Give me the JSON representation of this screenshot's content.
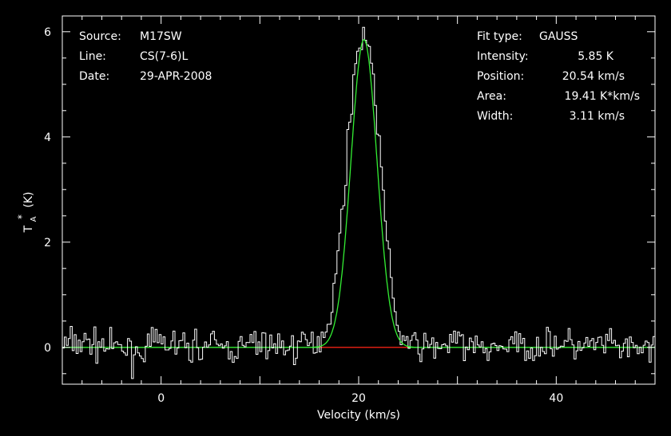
{
  "header_left": {
    "source_label": "Source:",
    "source_value": "M17SW",
    "line_label": "Line:",
    "line_value": "CS(7-6)L",
    "date_label": "Date:",
    "date_value": "29-APR-2008"
  },
  "header_right": {
    "fit_type_label": "Fit type:",
    "fit_type_value": "GAUSS",
    "intensity_label": "Intensity:",
    "intensity_value": "5.85 K",
    "position_label": "Position:",
    "position_value": "20.54 km/s",
    "area_label": "Area:",
    "area_value": "19.41 K*km/s",
    "width_label": "Width:",
    "width_value": "3.11 km/s"
  },
  "chart_data": {
    "type": "line",
    "xlabel": "Velocity (km/s)",
    "ylabel_main": "T",
    "ylabel_sub": "A",
    "ylabel_sup": "*",
    "ylabel_unit": "(K)",
    "xlim": [
      -10,
      50
    ],
    "ylim": [
      -0.7,
      6.3
    ],
    "xticks": [
      0,
      20,
      40
    ],
    "yticks": [
      0,
      2,
      4,
      6
    ],
    "grid": false,
    "noise_rms": 0.2,
    "spectrum_x": [
      -10,
      -7.5,
      -5,
      -2.5,
      0,
      2.5,
      5,
      7.5,
      10,
      12.5,
      15,
      16,
      17,
      17.5,
      18,
      18.5,
      19,
      19.5,
      20,
      20.5,
      21,
      21.5,
      22,
      22.5,
      23,
      23.5,
      24,
      25,
      27.5,
      30,
      32.5,
      35,
      37.5,
      40,
      42.5,
      45,
      47.5,
      50
    ],
    "spectrum_y": [
      0.05,
      0.1,
      0.0,
      -0.1,
      0.1,
      0.0,
      0.05,
      -0.05,
      0.1,
      0.0,
      0.05,
      0.15,
      0.5,
      1.1,
      1.9,
      2.9,
      4.1,
      5.1,
      5.7,
      6.0,
      5.8,
      5.1,
      4.1,
      2.9,
      1.8,
      0.9,
      0.35,
      0.05,
      0.0,
      0.1,
      -0.05,
      0.05,
      0.0,
      0.1,
      0.0,
      0.05,
      -0.05,
      0.0
    ],
    "fit": {
      "type": "GAUSS",
      "intensity": 5.85,
      "position": 20.54,
      "width": 3.11,
      "area": 19.41
    },
    "baseline": {
      "value": 0,
      "fit_range": [
        16,
        25
      ]
    },
    "colors": {
      "background": "#000000",
      "axes": "#ffffff",
      "spectrum": "#ffffff",
      "fit": "#33ee33",
      "baseline_fit_region": "#ee1111"
    }
  }
}
